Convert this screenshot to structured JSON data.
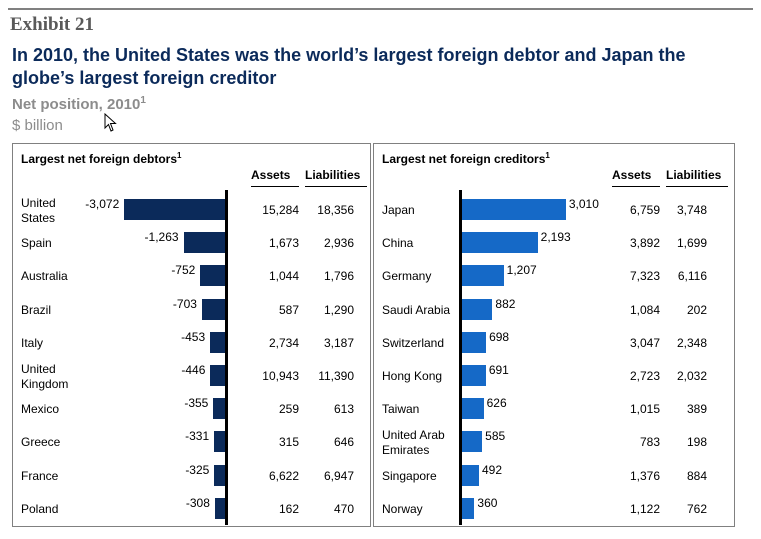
{
  "header": {
    "exhibit": "Exhibit 21",
    "title": "In 2010, the United States was the world’s largest foreign debtor and Japan the globe’s largest foreign creditor",
    "subtitle": "Net position, 2010",
    "subtitle_footnote": "1",
    "unit": "$ billion"
  },
  "columns": {
    "assets": "Assets",
    "liabilities": "Liabilities"
  },
  "colors": {
    "debtor_bar": "#0b2a5a",
    "creditor_bar": "#1569c7",
    "title": "#0b2a5a"
  },
  "chart_data": [
    {
      "type": "bar",
      "orientation": "horizontal",
      "title": "Largest net foreign debtors",
      "title_footnote": "1",
      "categories": [
        "United States",
        "Spain",
        "Australia",
        "Brazil",
        "Italy",
        "United Kingdom",
        "Mexico",
        "Greece",
        "France",
        "Poland"
      ],
      "category_lines": [
        [
          "United",
          "States"
        ],
        [
          "Spain"
        ],
        [
          "Australia"
        ],
        [
          "Brazil"
        ],
        [
          "Italy"
        ],
        [
          "United",
          "Kingdom"
        ],
        [
          "Mexico"
        ],
        [
          "Greece"
        ],
        [
          "France"
        ],
        [
          "Poland"
        ]
      ],
      "values": [
        -3072,
        -1263,
        -752,
        -703,
        -453,
        -446,
        -355,
        -331,
        -325,
        -308
      ],
      "value_labels": [
        "-3,072",
        "-1,263",
        "-752",
        "-703",
        "-453",
        "-446",
        "-355",
        "-331",
        "-325",
        "-308"
      ],
      "assets": [
        "15,284",
        "1,673",
        "1,044",
        "587",
        "2,734",
        "10,943",
        "259",
        "315",
        "6,622",
        "162"
      ],
      "liabilities": [
        "18,356",
        "2,936",
        "1,796",
        "1,290",
        "3,187",
        "11,390",
        "613",
        "646",
        "6,947",
        "470"
      ]
    },
    {
      "type": "bar",
      "orientation": "horizontal",
      "title": "Largest net foreign creditors",
      "title_footnote": "1",
      "categories": [
        "Japan",
        "China",
        "Germany",
        "Saudi Arabia",
        "Switzerland",
        "Hong Kong",
        "Taiwan",
        "United Arab Emirates",
        "Singapore",
        "Norway"
      ],
      "category_lines": [
        [
          "Japan"
        ],
        [
          "China"
        ],
        [
          "Germany"
        ],
        [
          "Saudi Arabia"
        ],
        [
          "Switzerland"
        ],
        [
          "Hong Kong"
        ],
        [
          "Taiwan"
        ],
        [
          "United Arab",
          "Emirates"
        ],
        [
          "Singapore"
        ],
        [
          "Norway"
        ]
      ],
      "values": [
        3010,
        2193,
        1207,
        882,
        698,
        691,
        626,
        585,
        492,
        360
      ],
      "value_labels": [
        "3,010",
        "2,193",
        "1,207",
        "882",
        "698",
        "691",
        "626",
        "585",
        "492",
        "360"
      ],
      "assets": [
        "6,759",
        "3,892",
        "7,323",
        "1,084",
        "3,047",
        "2,723",
        "1,015",
        "783",
        "1,376",
        "1,122"
      ],
      "liabilities": [
        "3,748",
        "1,699",
        "6,116",
        "202",
        "2,348",
        "2,032",
        "389",
        "198",
        "884",
        "762"
      ]
    }
  ]
}
